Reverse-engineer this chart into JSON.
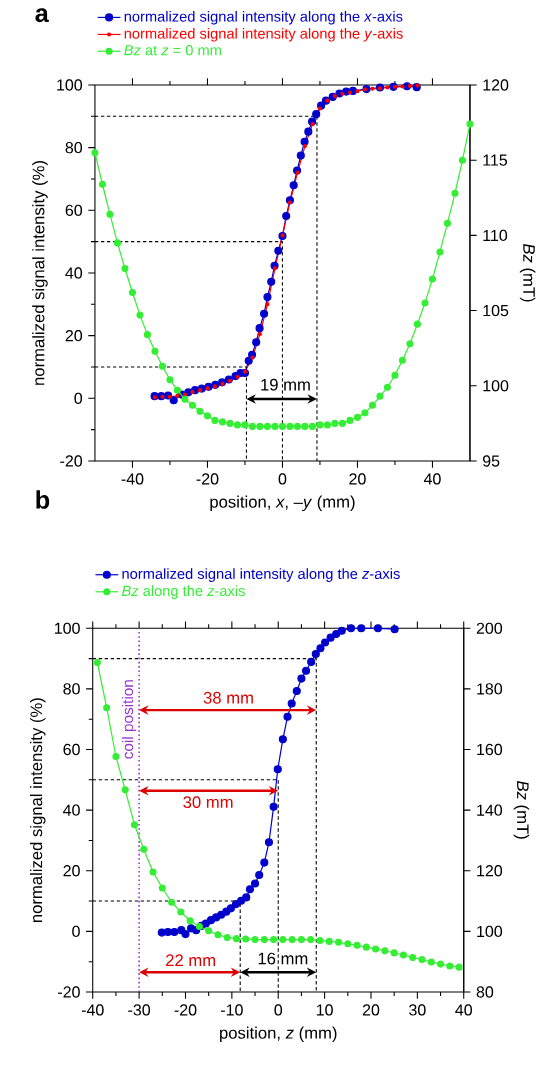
{
  "chart_data": [
    {
      "type": "line",
      "title": "a",
      "xlabel": "position, *x*, –*y* (mm)",
      "ylabel": "normalized signal intensity (%)",
      "y2label": "*Bz* (mT)",
      "xlim": [
        -50,
        50
      ],
      "xticks": [
        -40,
        -20,
        0,
        20,
        40
      ],
      "ylim": [
        -20,
        100
      ],
      "yticks": [
        -20,
        0,
        20,
        40,
        60,
        80,
        100
      ],
      "y2lim": [
        95,
        120
      ],
      "y2ticks": [
        95,
        100,
        105,
        110,
        115,
        120
      ],
      "legend": "top",
      "annotations": [
        "19 mm"
      ],
      "series": [
        {
          "name": "normalized signal intensity along the *x*-axis",
          "color": "#0000cc",
          "marker": "circle",
          "line_style": "solid",
          "x": [
            -34.1,
            -32.3,
            -30.5,
            -29.0,
            -26.9,
            -25.1,
            -23.3,
            -21.5,
            -19.7,
            -17.9,
            -16.1,
            -14.3,
            -12.5,
            -11.2,
            -10.0,
            -9.0,
            -8.1,
            -7.0,
            -6.1,
            -4.9,
            -4.0,
            -3.0,
            -2.1,
            -1.1,
            0.0,
            1.0,
            2.0,
            3.0,
            3.9,
            4.9,
            5.9,
            6.9,
            7.9,
            9.0,
            10.3,
            11.6,
            13.4,
            15.2,
            17.0,
            18.8,
            22.4,
            26.0,
            29.6,
            33.2,
            35.8
          ],
          "values": [
            0.7,
            0.7,
            0.9,
            -0.6,
            1.2,
            1.9,
            2.6,
            3.1,
            3.7,
            4.3,
            5.1,
            6.0,
            7.1,
            8.1,
            8.1,
            12.0,
            13.9,
            17.9,
            22.4,
            27.0,
            32.3,
            37.2,
            42.3,
            47.1,
            51.8,
            58.2,
            63.2,
            68.0,
            72.7,
            77.5,
            81.9,
            85.1,
            88.3,
            90.7,
            93.4,
            95.0,
            96.2,
            97.3,
            97.9,
            98.1,
            98.7,
            99.2,
            99.4,
            99.6,
            99.3
          ]
        },
        {
          "name": "normalized signal intensity along the *y*-axis",
          "color": "#ff0000",
          "marker": "circle",
          "line_style": "solid",
          "x": [
            -34,
            -32,
            -30,
            -28,
            -26,
            -24,
            -22,
            -20,
            -18,
            -16,
            -14,
            -12,
            -10,
            -8,
            -6,
            -4,
            -2,
            0,
            2,
            4,
            6,
            8,
            10,
            12,
            14,
            16,
            18,
            20,
            22,
            24,
            26,
            28,
            30,
            32,
            34,
            36
          ],
          "values": [
            0.3,
            0.5,
            0.5,
            0.8,
            1.2,
            2.0,
            2.6,
            3.2,
            3.8,
            4.6,
            5.6,
            6.8,
            8.5,
            13.0,
            20.5,
            30.0,
            41.5,
            52.0,
            62.5,
            72.0,
            80.5,
            87.5,
            92.5,
            95.0,
            96.5,
            97.2,
            97.6,
            98.0,
            98.6,
            98.8,
            98.9,
            99.2,
            99.4,
            99.5,
            99.7,
            99.8
          ]
        },
        {
          "name": "*Bz* at *z* = 0 mm",
          "color": "#33ee33",
          "marker": "circle",
          "line_style": "solid",
          "axis": "y2",
          "x": [
            -50,
            -48,
            -46,
            -44,
            -42,
            -40,
            -38,
            -36,
            -34,
            -32,
            -30,
            -28,
            -26,
            -24,
            -22,
            -20,
            -18,
            -16,
            -14,
            -12,
            -10,
            -8,
            -6,
            -4,
            -2,
            0,
            2,
            4,
            6,
            8,
            10,
            12,
            14,
            16,
            18,
            20,
            22,
            24,
            26,
            28,
            30,
            32,
            34,
            36,
            38,
            40,
            42,
            44,
            46,
            48,
            50
          ],
          "values": [
            115.5,
            113.4,
            111.4,
            109.5,
            107.8,
            106.2,
            104.7,
            103.4,
            102.3,
            101.3,
            100.4,
            99.7,
            99.1,
            98.7,
            98.3,
            98.0,
            97.7,
            97.6,
            97.5,
            97.4,
            97.4,
            97.3,
            97.3,
            97.3,
            97.3,
            97.3,
            97.3,
            97.3,
            97.3,
            97.3,
            97.4,
            97.4,
            97.5,
            97.5,
            97.7,
            97.9,
            98.2,
            98.7,
            99.3,
            99.9,
            100.7,
            101.7,
            102.8,
            104.1,
            105.5,
            107.1,
            108.9,
            110.8,
            112.8,
            115.0,
            117.4
          ]
        },
        {
          "color": "#000000",
          "marker": "none",
          "line_style": "dashed",
          "x": [
            -50,
            9.2,
            9.2
          ],
          "values": [
            90,
            90,
            -20
          ]
        },
        {
          "color": "#000000",
          "marker": "none",
          "line_style": "dashed",
          "x": [
            -50,
            0,
            0
          ],
          "values": [
            50,
            50,
            -20
          ]
        },
        {
          "color": "#000000",
          "marker": "none",
          "line_style": "dashed",
          "x": [
            -50,
            -9.6,
            -9.6
          ],
          "values": [
            10,
            10,
            -20
          ]
        }
      ]
    },
    {
      "type": "line",
      "title": "b",
      "xlabel": "position, *z* (mm)",
      "ylabel": "normalized signal intensity (%)",
      "y2label": "*Bz* (mT)",
      "xlim": [
        -40,
        40
      ],
      "xticks": [
        -40,
        -30,
        -20,
        -10,
        0,
        10,
        20,
        30,
        40
      ],
      "ylim": [
        -20,
        100
      ],
      "yticks": [
        -20,
        0,
        20,
        40,
        60,
        80,
        100
      ],
      "y2lim": [
        80,
        200
      ],
      "y2ticks": [
        80,
        100,
        120,
        140,
        160,
        180,
        200
      ],
      "legend": "top",
      "ref_lines": [
        {
          "axis": "x",
          "value": -30,
          "label": "coil position",
          "color": "#9933cc",
          "line_style": "dotted"
        }
      ],
      "annotations": [
        "38 mm",
        "30 mm",
        "22 mm",
        "16 mm"
      ],
      "series": [
        {
          "name": "normalized signal intensity along the *z*-axis",
          "color": "#0000cc",
          "marker": "circle",
          "line_style": "solid",
          "x": [
            -25.1,
            -23.8,
            -22.4,
            -20.9,
            -20.0,
            -18.8,
            -17.7,
            -16.6,
            -15.6,
            -14.5,
            -13.4,
            -12.3,
            -11.2,
            -10.2,
            -9.1,
            -8.0,
            -6.9,
            -6.1,
            -5.0,
            -4.1,
            -3.0,
            -2.0,
            -1.0,
            -0.1,
            1.0,
            2.0,
            2.9,
            4.0,
            5.0,
            6.0,
            7.1,
            8.1,
            9.1,
            10.1,
            11.3,
            12.5,
            13.7,
            15.7,
            17.9,
            21.5,
            25.1
          ],
          "values": [
            -0.4,
            -0.2,
            -0.2,
            0.4,
            -0.9,
            1.0,
            0.4,
            1.8,
            2.6,
            3.7,
            4.6,
            5.5,
            6.5,
            7.6,
            9.0,
            10.1,
            11.2,
            13.9,
            15.8,
            18.6,
            22.7,
            29.4,
            41.1,
            53.5,
            63.4,
            70.8,
            75.2,
            79.3,
            83.4,
            86.0,
            88.9,
            91.5,
            93.4,
            95.3,
            96.9,
            98.1,
            99.2,
            100,
            100,
            100,
            99.7
          ]
        },
        {
          "name": "*Bz* along the *z*-axis",
          "color": "#33ee33",
          "marker": "circle",
          "line_style": "solid",
          "axis": "y2",
          "x": [
            -39,
            -37,
            -35,
            -33,
            -31,
            -29,
            -27,
            -25,
            -23,
            -21,
            -19,
            -17,
            -15,
            -13,
            -11,
            -9,
            -7,
            -5,
            -3,
            -1,
            1,
            3,
            5,
            7,
            9,
            11,
            13,
            15,
            17,
            19,
            21,
            23,
            25,
            27,
            29,
            31,
            33,
            35,
            37,
            39
          ],
          "values": [
            188.7,
            173.8,
            157.7,
            146.7,
            135.2,
            127.1,
            119.6,
            114.3,
            109.6,
            106.4,
            103.5,
            101.6,
            100.2,
            98.9,
            98.0,
            97.6,
            97.5,
            97.3,
            97.3,
            97.3,
            97.3,
            97.3,
            97.3,
            97.3,
            97.0,
            96.7,
            96.4,
            95.9,
            95.4,
            94.8,
            94.2,
            93.6,
            92.9,
            92.2,
            91.4,
            90.7,
            89.9,
            89.2,
            88.6,
            88.2
          ]
        },
        {
          "color": "#000000",
          "marker": "none",
          "line_style": "dashed",
          "x": [
            -40,
            8.2,
            8.2
          ],
          "values": [
            90,
            90,
            -20
          ]
        },
        {
          "color": "#000000",
          "marker": "none",
          "line_style": "dashed",
          "x": [
            -40,
            0,
            0
          ],
          "values": [
            50,
            50,
            -20
          ]
        },
        {
          "color": "#000000",
          "marker": "none",
          "line_style": "dashed",
          "x": [
            -40,
            -8.2,
            -8.2
          ],
          "values": [
            10,
            10,
            -20
          ]
        }
      ]
    }
  ]
}
